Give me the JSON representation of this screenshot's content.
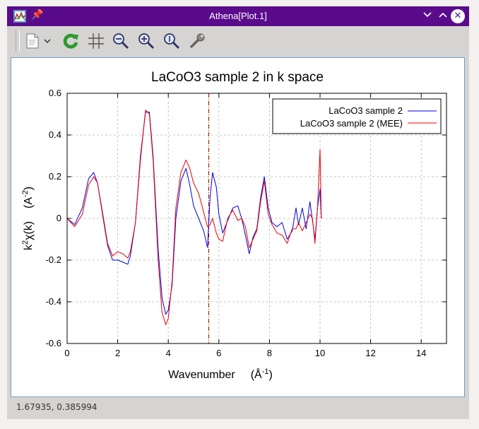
{
  "window": {
    "title": "Athena[Plot.1]",
    "titlebar_color": "#5a0b8c",
    "icons": [
      "athena-app-icon",
      "pin-icon",
      "minimize-icon",
      "maximize-icon",
      "close-icon"
    ]
  },
  "toolbar": {
    "tools": [
      "save-document-icon",
      "dropdown-arrow-icon",
      "refresh-icon",
      "grid-icon",
      "zoom-out-icon",
      "zoom-in-icon",
      "zoom-reset-icon",
      "settings-wrench-icon"
    ]
  },
  "status": {
    "coords": "1.67935, 0.385994"
  },
  "chart_data": {
    "type": "line",
    "title": "LaCoO3 sample 2 in k space",
    "xlabel": "Wavenumber",
    "xunit": "(Å",
    "xunit_exp": "-1",
    "ylabel_main": "k",
    "ylabel_exp": "2",
    "ylabel_rest": "χ(k)",
    "ylabel_unit": "(A",
    "ylabel_unit_exp": "-2",
    "xlim": [
      0,
      15
    ],
    "ylim": [
      -0.6,
      0.6
    ],
    "xticks": [
      0,
      2,
      4,
      6,
      8,
      10,
      12,
      14
    ],
    "yticks": [
      -0.6,
      -0.4,
      -0.2,
      0,
      0.2,
      0.4,
      0.6
    ],
    "ytick_labels": [
      "-0.6",
      "-0.4",
      "-0.2",
      "0",
      "0.2",
      "0.4",
      "0.6"
    ],
    "grid": true,
    "legend_position": "top-right",
    "marker_x": 5.6,
    "marker_color": "#aa2200",
    "series": [
      {
        "name": "LaCoO3 sample 2",
        "color": "#0000dd",
        "x": [
          0,
          0.3,
          0.6,
          0.85,
          1.05,
          1.2,
          1.4,
          1.6,
          1.8,
          2.0,
          2.2,
          2.4,
          2.5,
          2.7,
          2.9,
          3.1,
          3.25,
          3.4,
          3.6,
          3.75,
          3.9,
          4.0,
          4.15,
          4.3,
          4.5,
          4.7,
          4.85,
          5.0,
          5.2,
          5.4,
          5.55,
          5.65,
          5.75,
          5.9,
          6.0,
          6.15,
          6.35,
          6.55,
          6.75,
          6.9,
          7.05,
          7.2,
          7.35,
          7.5,
          7.65,
          7.8,
          7.95,
          8.1,
          8.3,
          8.5,
          8.7,
          8.9,
          9.05,
          9.15,
          9.3,
          9.45,
          9.6,
          9.7,
          9.8,
          9.9,
          10.0,
          10.05
        ],
        "y": [
          0,
          -0.03,
          0.05,
          0.19,
          0.22,
          0.17,
          0.02,
          -0.13,
          -0.2,
          -0.2,
          -0.21,
          -0.22,
          -0.18,
          -0.02,
          0.3,
          0.51,
          0.51,
          0.3,
          -0.15,
          -0.38,
          -0.46,
          -0.44,
          -0.32,
          0.0,
          0.18,
          0.24,
          0.16,
          0.06,
          0.0,
          -0.06,
          -0.14,
          0.1,
          0.22,
          0.15,
          0.02,
          -0.07,
          -0.01,
          0.05,
          0.06,
          0.0,
          -0.08,
          -0.17,
          -0.09,
          -0.05,
          0.1,
          0.2,
          0.05,
          -0.02,
          -0.04,
          -0.02,
          -0.1,
          -0.06,
          0.05,
          -0.03,
          0.05,
          -0.05,
          0.08,
          -0.01,
          -0.1,
          0.05,
          0.14,
          0.0
        ]
      },
      {
        "name": "LaCoO3 sample 2 (MEE)",
        "color": "#ee0000",
        "x": [
          0,
          0.3,
          0.6,
          0.85,
          1.05,
          1.2,
          1.4,
          1.6,
          1.8,
          2.0,
          2.2,
          2.4,
          2.5,
          2.7,
          2.9,
          3.1,
          3.25,
          3.4,
          3.6,
          3.75,
          3.9,
          4.0,
          4.15,
          4.3,
          4.5,
          4.7,
          4.85,
          5.0,
          5.2,
          5.4,
          5.55,
          5.65,
          5.75,
          5.9,
          6.0,
          6.15,
          6.35,
          6.55,
          6.75,
          6.9,
          7.05,
          7.2,
          7.35,
          7.5,
          7.65,
          7.8,
          7.95,
          8.1,
          8.3,
          8.5,
          8.7,
          8.9,
          9.05,
          9.15,
          9.3,
          9.45,
          9.6,
          9.7,
          9.8,
          9.9,
          10.0,
          10.05
        ],
        "y": [
          0,
          -0.04,
          0.02,
          0.16,
          0.2,
          0.17,
          0.03,
          -0.12,
          -0.18,
          -0.16,
          -0.17,
          -0.19,
          -0.16,
          -0.02,
          0.28,
          0.52,
          0.5,
          0.28,
          -0.2,
          -0.45,
          -0.51,
          -0.48,
          -0.3,
          0.05,
          0.22,
          0.28,
          0.24,
          0.17,
          0.12,
          0.03,
          -0.04,
          -0.03,
          0.0,
          -0.07,
          -0.1,
          -0.11,
          0.0,
          0.04,
          -0.01,
          0.0,
          -0.04,
          -0.14,
          -0.1,
          -0.06,
          0.08,
          0.18,
          0.02,
          -0.03,
          -0.07,
          -0.08,
          -0.12,
          -0.05,
          -0.05,
          -0.02,
          -0.06,
          -0.02,
          0.02,
          0.0,
          -0.12,
          0.05,
          0.33,
          0.0
        ]
      }
    ]
  }
}
